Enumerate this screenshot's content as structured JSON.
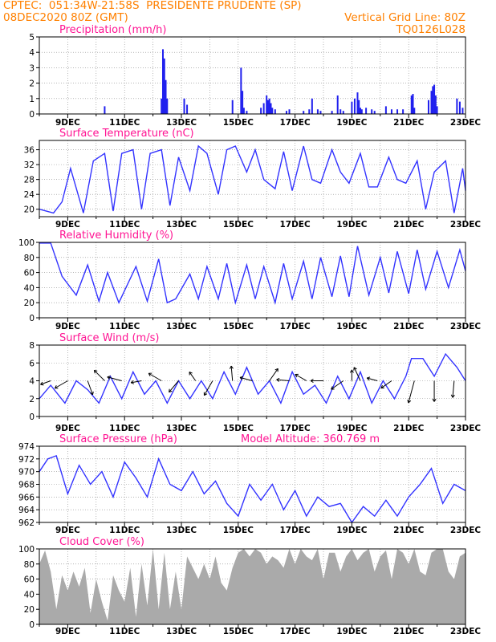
{
  "header": {
    "line1_left": "CPTEC:  051:34W-21:58S  PRESIDENTE PRUDENTE (SP)",
    "line1_right": "",
    "line2_left": "08DEC2020 80Z (GMT)",
    "line2_right": "Vertical Grid Line: 80Z",
    "line3_right": "TQ0126L028"
  },
  "x_axis": {
    "range": [
      8,
      23
    ],
    "tick_labels": [
      "9DEC",
      "11DEC",
      "13DEC",
      "15DEC",
      "17DEC",
      "19DEC",
      "21DEC",
      "23DEC"
    ]
  },
  "colors": {
    "line": "#3333ff",
    "bar": "#2020ee",
    "cloud": "#aaaaaa",
    "title": "#ff1493",
    "header": "#ff8000",
    "arrow": "#000000"
  },
  "chart_data": [
    {
      "type": "bar",
      "title": "Precipitation (mm/h)",
      "ylim": [
        0,
        5
      ],
      "yticks": [
        "0",
        "1",
        "2",
        "3",
        "4",
        "5"
      ],
      "x": [
        10.3,
        12.3,
        12.35,
        12.4,
        12.45,
        12.5,
        13.1,
        13.2,
        14.8,
        15.1,
        15.15,
        15.2,
        15.3,
        15.8,
        15.9,
        16.0,
        16.05,
        16.1,
        16.15,
        16.2,
        16.3,
        16.7,
        16.8,
        17.3,
        17.5,
        17.6,
        17.8,
        17.9,
        18.3,
        18.5,
        18.6,
        18.7,
        19.0,
        19.1,
        19.2,
        19.25,
        19.3,
        19.35,
        19.5,
        19.7,
        19.8,
        20.2,
        20.4,
        20.6,
        20.8,
        21.1,
        21.15,
        21.2,
        21.7,
        21.8,
        21.85,
        21.9,
        21.95,
        22.0,
        22.7,
        22.8,
        22.9
      ],
      "values": [
        0.5,
        1.0,
        4.2,
        3.6,
        2.2,
        1.0,
        1.0,
        0.6,
        0.9,
        3.0,
        1.5,
        0.4,
        0.2,
        0.4,
        0.7,
        1.2,
        0.9,
        1.0,
        0.7,
        0.4,
        0.3,
        0.2,
        0.3,
        0.2,
        0.3,
        1.0,
        0.3,
        0.2,
        0.2,
        1.2,
        0.3,
        0.2,
        0.8,
        1.0,
        1.4,
        0.9,
        0.4,
        0.3,
        0.4,
        0.3,
        0.2,
        0.5,
        0.3,
        0.3,
        0.3,
        1.2,
        1.3,
        0.4,
        0.9,
        1.5,
        1.8,
        1.9,
        1.2,
        0.5,
        1.0,
        0.8,
        0.4
      ]
    },
    {
      "type": "line",
      "title": "Surface Temperature (nC)",
      "ylim": [
        18,
        38.5
      ],
      "yticks": [
        "20",
        "24",
        "28",
        "32",
        "36"
      ],
      "x": [
        8.0,
        8.5,
        8.8,
        9.1,
        9.55,
        9.9,
        10.3,
        10.6,
        10.9,
        11.3,
        11.6,
        11.9,
        12.3,
        12.6,
        12.9,
        13.3,
        13.6,
        13.9,
        14.3,
        14.6,
        14.9,
        15.3,
        15.6,
        15.9,
        16.3,
        16.6,
        16.9,
        17.3,
        17.6,
        17.9,
        18.3,
        18.6,
        18.9,
        19.3,
        19.6,
        19.9,
        20.3,
        20.6,
        20.9,
        21.3,
        21.6,
        21.9,
        22.3,
        22.6,
        22.9,
        23.0
      ],
      "values": [
        20,
        19,
        22,
        31,
        19,
        33,
        35,
        19.5,
        35,
        36,
        20,
        35,
        36,
        21,
        34,
        25,
        37,
        35,
        24,
        36,
        37,
        30,
        36,
        28,
        25.5,
        35.5,
        25,
        37,
        28,
        27,
        36,
        30,
        27,
        35,
        26,
        26,
        34,
        28,
        27,
        33,
        20,
        30,
        33,
        19,
        31,
        25
      ]
    },
    {
      "type": "line",
      "title": "Relative Humidity (%)",
      "ylim": [
        0,
        100
      ],
      "yticks": [
        "0",
        "20",
        "40",
        "60",
        "80",
        "100"
      ],
      "x": [
        8.0,
        8.4,
        8.8,
        9.3,
        9.7,
        10.1,
        10.4,
        10.8,
        11.4,
        11.8,
        12.2,
        12.5,
        12.8,
        13.3,
        13.6,
        13.9,
        14.3,
        14.6,
        14.9,
        15.3,
        15.6,
        15.9,
        16.3,
        16.6,
        16.9,
        17.3,
        17.6,
        17.9,
        18.3,
        18.6,
        18.9,
        19.2,
        19.6,
        20.0,
        20.3,
        20.6,
        21.0,
        21.3,
        21.6,
        22.0,
        22.4,
        22.8,
        23.0
      ],
      "values": [
        99,
        99,
        55,
        30,
        70,
        22,
        60,
        20,
        68,
        22,
        78,
        20,
        25,
        58,
        25,
        68,
        25,
        72,
        20,
        70,
        25,
        68,
        20,
        72,
        25,
        75,
        25,
        80,
        28,
        82,
        28,
        95,
        30,
        80,
        33,
        88,
        32,
        90,
        38,
        88,
        40,
        90,
        62
      ]
    },
    {
      "type": "line",
      "title": "Surface Wind (m/s)",
      "ylim": [
        0,
        8
      ],
      "yticks": [
        "0",
        "2",
        "4",
        "6",
        "8"
      ],
      "x": [
        8.0,
        8.4,
        8.9,
        9.3,
        9.7,
        10.1,
        10.5,
        10.9,
        11.3,
        11.7,
        12.1,
        12.5,
        12.9,
        13.3,
        13.7,
        14.1,
        14.5,
        14.9,
        15.3,
        15.7,
        16.1,
        16.5,
        16.9,
        17.3,
        17.7,
        18.1,
        18.5,
        18.9,
        19.3,
        19.7,
        20.1,
        20.5,
        20.9,
        21.1,
        21.5,
        21.9,
        22.3,
        22.7,
        23.0
      ],
      "values": [
        2,
        3.5,
        1.5,
        4,
        3,
        1.5,
        4.5,
        2,
        5,
        2.5,
        4,
        1.5,
        4,
        2,
        4,
        2,
        5,
        2.5,
        5.5,
        2.5,
        4,
        1.5,
        5,
        2.5,
        3.5,
        1.5,
        4.5,
        2,
        5,
        1.5,
        4,
        2,
        4.5,
        6.5,
        6.5,
        4.5,
        7,
        5.5,
        4
      ],
      "barb_x": [
        8.4,
        9.0,
        9.7,
        10.3,
        10.9,
        11.6,
        12.3,
        12.9,
        13.5,
        14.1,
        14.8,
        15.5,
        16.1,
        16.8,
        17.4,
        18.0,
        18.7,
        19.0,
        19.3,
        19.9,
        20.4,
        21.2,
        21.9,
        22.6
      ],
      "barb_dir": [
        200,
        210,
        290,
        135,
        165,
        190,
        150,
        230,
        125,
        240,
        95,
        165,
        55,
        175,
        150,
        180,
        215,
        90,
        115,
        165,
        215,
        255,
        270,
        265
      ],
      "barb_speed": [
        1.5,
        2.5,
        2.5,
        2.5,
        2.5,
        1.5,
        2.5,
        2.5,
        1.5,
        3,
        2.5,
        2,
        2.5,
        2,
        2,
        2,
        2.5,
        1.5,
        2.5,
        1.5,
        2,
        4.5,
        4,
        3
      ]
    },
    {
      "type": "line",
      "title": "Surface Pressure (hPa)",
      "annotation": "Model Altitude: 360.769 m",
      "ylim": [
        962,
        974
      ],
      "yticks": [
        "962",
        "964",
        "966",
        "968",
        "970",
        "972",
        "974"
      ],
      "x": [
        8.0,
        8.3,
        8.6,
        9.0,
        9.4,
        9.8,
        10.2,
        10.6,
        11.0,
        11.4,
        11.8,
        12.2,
        12.6,
        13.0,
        13.4,
        13.8,
        14.2,
        14.6,
        15.0,
        15.4,
        15.8,
        16.2,
        16.6,
        17.0,
        17.4,
        17.8,
        18.2,
        18.6,
        19.0,
        19.4,
        19.8,
        20.2,
        20.6,
        21.0,
        21.4,
        21.8,
        22.2,
        22.6,
        23.0
      ],
      "values": [
        970,
        972,
        972.5,
        966.5,
        971,
        968,
        970,
        966,
        971.5,
        969,
        966,
        972,
        968,
        967,
        970,
        966.5,
        968.5,
        965,
        963,
        968,
        965.5,
        968,
        964,
        967,
        963,
        966,
        964.5,
        965,
        962,
        964.5,
        963,
        965.5,
        963,
        966,
        968,
        970.5,
        965,
        968,
        967
      ]
    },
    {
      "type": "area",
      "title": "Cloud Cover (%)",
      "ylim": [
        0,
        100
      ],
      "yticks": [
        "0",
        "20",
        "40",
        "60",
        "80",
        "100"
      ],
      "x": [
        8.0,
        8.2,
        8.4,
        8.6,
        8.8,
        9.0,
        9.2,
        9.4,
        9.6,
        9.8,
        10.0,
        10.2,
        10.4,
        10.6,
        10.8,
        11.0,
        11.2,
        11.4,
        11.6,
        11.8,
        12.0,
        12.2,
        12.4,
        12.6,
        12.8,
        13.0,
        13.2,
        13.4,
        13.6,
        13.8,
        14.0,
        14.2,
        14.4,
        14.6,
        14.8,
        15.0,
        15.2,
        15.4,
        15.6,
        15.8,
        16.0,
        16.2,
        16.4,
        16.6,
        16.8,
        17.0,
        17.2,
        17.4,
        17.6,
        17.8,
        18.0,
        18.2,
        18.4,
        18.6,
        18.8,
        19.0,
        19.2,
        19.4,
        19.6,
        19.8,
        20.0,
        20.2,
        20.4,
        20.6,
        20.8,
        21.0,
        21.2,
        21.4,
        21.6,
        21.8,
        22.0,
        22.2,
        22.4,
        22.6,
        22.8,
        23.0
      ],
      "values": [
        80,
        98,
        70,
        20,
        65,
        45,
        70,
        50,
        75,
        15,
        60,
        30,
        5,
        65,
        45,
        30,
        75,
        10,
        80,
        25,
        100,
        20,
        95,
        20,
        70,
        20,
        90,
        75,
        60,
        80,
        60,
        90,
        55,
        45,
        75,
        95,
        100,
        90,
        100,
        95,
        80,
        90,
        85,
        75,
        100,
        80,
        100,
        90,
        85,
        100,
        60,
        95,
        95,
        70,
        90,
        100,
        85,
        95,
        100,
        70,
        90,
        98,
        60,
        100,
        95,
        80,
        100,
        70,
        65,
        95,
        100,
        100,
        70,
        60,
        90,
        95
      ]
    }
  ]
}
